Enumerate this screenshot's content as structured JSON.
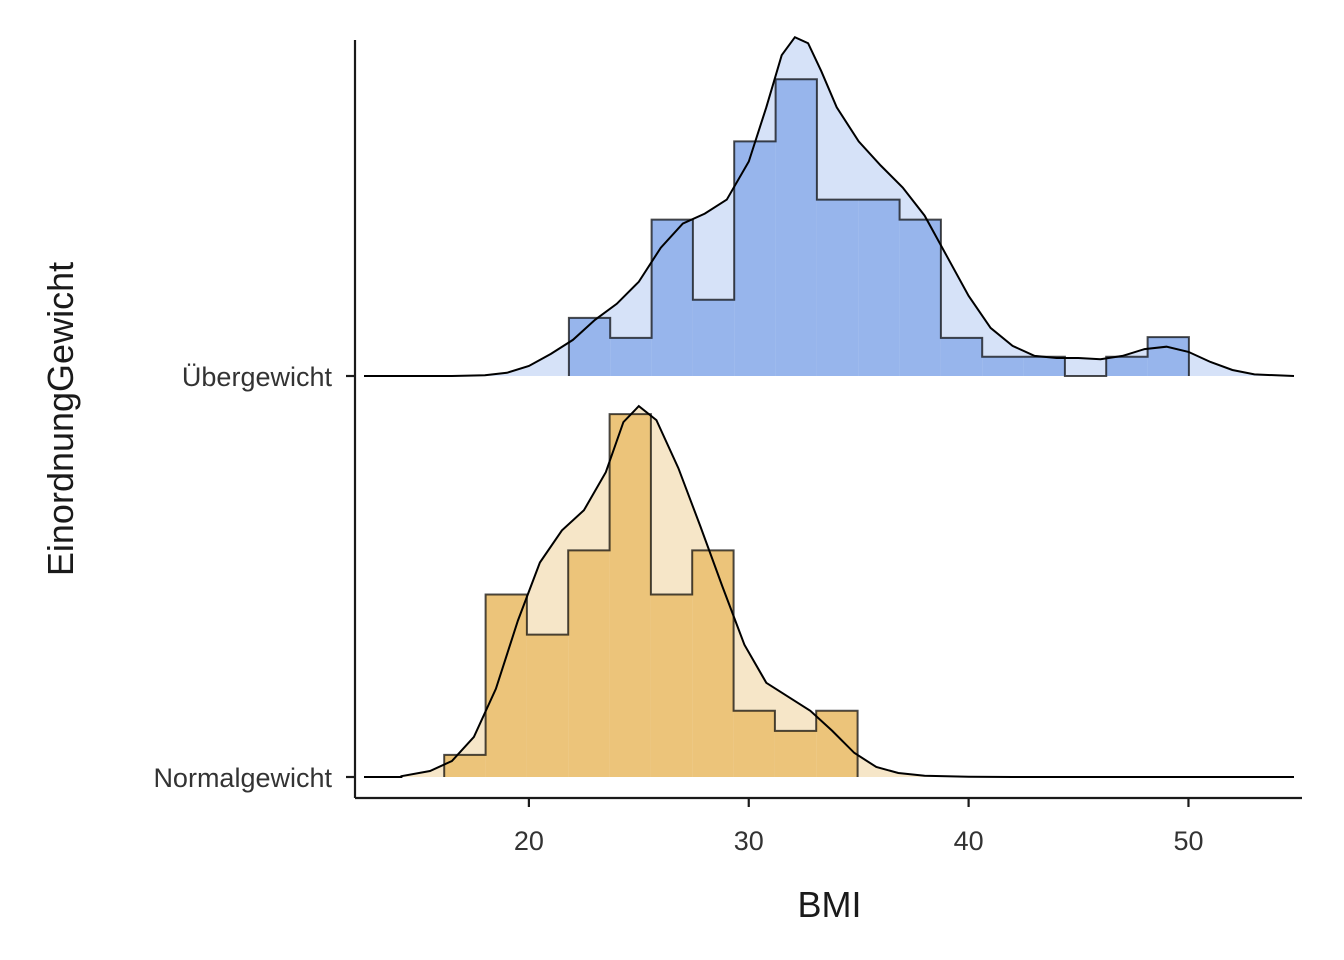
{
  "chart_data": {
    "type": "ridgeline-histogram-density",
    "xlabel": "BMI",
    "ylabel": "EinordnungGewicht",
    "xlim": [
      12.5,
      54.8
    ],
    "x_ticks": [
      20,
      30,
      40,
      50
    ],
    "bin_width": 1.88,
    "categories": [
      "Normalgewicht",
      "Übergewicht"
    ],
    "series": [
      {
        "name": "Normalgewicht",
        "fill_hist": "#ecc47a",
        "fill_density": "#f6e6c8",
        "bin_start": 16.15,
        "bin_heights": [
          0.055,
          0.455,
          0.355,
          0.565,
          0.905,
          0.455,
          0.565,
          0.165,
          0.115,
          0.165
        ],
        "density": [
          [
            14.2,
            0.002
          ],
          [
            15.5,
            0.015
          ],
          [
            16.5,
            0.04
          ],
          [
            17.5,
            0.1
          ],
          [
            18.5,
            0.22
          ],
          [
            19.5,
            0.39
          ],
          [
            20.5,
            0.535
          ],
          [
            21.5,
            0.615
          ],
          [
            22.5,
            0.665
          ],
          [
            23.5,
            0.76
          ],
          [
            24.3,
            0.885
          ],
          [
            25.0,
            0.925
          ],
          [
            25.8,
            0.89
          ],
          [
            26.8,
            0.77
          ],
          [
            27.8,
            0.625
          ],
          [
            28.8,
            0.475
          ],
          [
            29.8,
            0.33
          ],
          [
            30.8,
            0.235
          ],
          [
            31.8,
            0.2
          ],
          [
            32.8,
            0.165
          ],
          [
            33.8,
            0.115
          ],
          [
            34.8,
            0.06
          ],
          [
            35.8,
            0.025
          ],
          [
            36.8,
            0.01
          ],
          [
            38,
            0.003
          ],
          [
            40,
            0.0005
          ],
          [
            42,
            0.0
          ],
          [
            54.8,
            0.0
          ]
        ]
      },
      {
        "name": "Übergewicht",
        "fill_hist": "#97b5ec",
        "fill_density": "#d6e2f8",
        "bin_start": 21.82,
        "bin_heights": [
          0.145,
          0.095,
          0.39,
          0.19,
          0.585,
          0.74,
          0.44,
          0.44,
          0.39,
          0.095,
          0.048,
          0.048,
          0.0,
          0.048,
          0.097
        ],
        "density": [
          [
            16.5,
            0.0
          ],
          [
            18.0,
            0.002
          ],
          [
            19.0,
            0.008
          ],
          [
            20.0,
            0.025
          ],
          [
            21.0,
            0.055
          ],
          [
            22.0,
            0.09
          ],
          [
            23.0,
            0.14
          ],
          [
            24.0,
            0.18
          ],
          [
            25.0,
            0.235
          ],
          [
            26.0,
            0.32
          ],
          [
            27.0,
            0.38
          ],
          [
            28.0,
            0.405
          ],
          [
            29.0,
            0.44
          ],
          [
            30.0,
            0.535
          ],
          [
            30.8,
            0.67
          ],
          [
            31.5,
            0.8
          ],
          [
            32.1,
            0.845
          ],
          [
            32.7,
            0.83
          ],
          [
            33.3,
            0.76
          ],
          [
            34.0,
            0.67
          ],
          [
            35.0,
            0.585
          ],
          [
            36.0,
            0.525
          ],
          [
            37.0,
            0.47
          ],
          [
            38.0,
            0.4
          ],
          [
            39.0,
            0.3
          ],
          [
            40.0,
            0.2
          ],
          [
            41.0,
            0.12
          ],
          [
            42.0,
            0.075
          ],
          [
            43.0,
            0.05
          ],
          [
            44.0,
            0.045
          ],
          [
            45.0,
            0.045
          ],
          [
            46.0,
            0.042
          ],
          [
            47.0,
            0.05
          ],
          [
            48.0,
            0.067
          ],
          [
            49.0,
            0.073
          ],
          [
            50.0,
            0.06
          ],
          [
            51.0,
            0.035
          ],
          [
            52.0,
            0.015
          ],
          [
            53.0,
            0.004
          ],
          [
            54.8,
            0.0
          ]
        ]
      }
    ]
  }
}
